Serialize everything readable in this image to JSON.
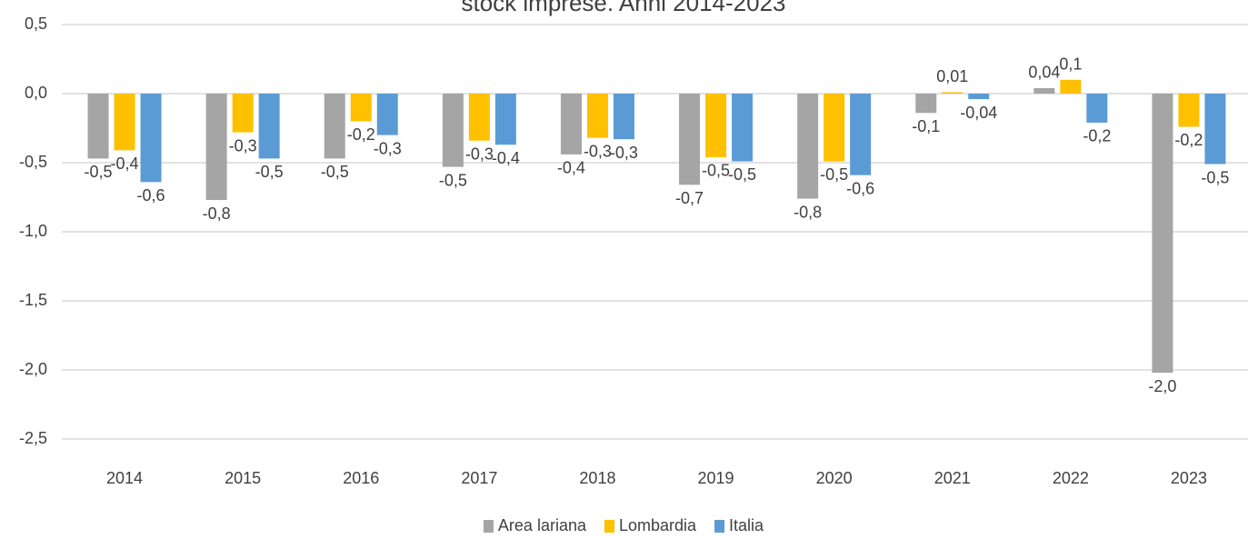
{
  "chart_data": {
    "type": "bar",
    "title": "stock imprese. Anni 2014-2023",
    "categories": [
      "2014",
      "2015",
      "2016",
      "2017",
      "2018",
      "2019",
      "2020",
      "2021",
      "2022",
      "2023"
    ],
    "series": [
      {
        "name": "Area lariana",
        "color": "#a5a5a5",
        "values": [
          -0.47,
          -0.77,
          -0.47,
          -0.53,
          -0.44,
          -0.66,
          -0.76,
          -0.14,
          0.04,
          -2.02
        ],
        "value_labels": [
          "-0,5",
          "-0,8",
          "-0,5",
          "-0,5",
          "-0,4",
          "-0,7",
          "-0,8",
          "-0,1",
          "0,04",
          "-2,0"
        ]
      },
      {
        "name": "Lombardia",
        "color": "#ffc000",
        "values": [
          -0.41,
          -0.28,
          -0.2,
          -0.34,
          -0.32,
          -0.46,
          -0.49,
          0.01,
          0.1,
          -0.24
        ],
        "value_labels": [
          "-0,4",
          "-0,3",
          "-0,2",
          "-0,3",
          "-0,3",
          "-0,5",
          "-0,5",
          "0,01",
          "0,1",
          "-0,2"
        ]
      },
      {
        "name": "Italia",
        "color": "#5b9bd5",
        "values": [
          -0.64,
          -0.47,
          -0.3,
          -0.37,
          -0.33,
          -0.49,
          -0.59,
          -0.04,
          -0.21,
          -0.51
        ],
        "value_labels": [
          "-0,6",
          "-0,5",
          "-0,3",
          "-0,4",
          "-0,3",
          "-0,5",
          "-0,6",
          "-0,04",
          "-0,2",
          "-0,5"
        ]
      }
    ],
    "ylim": [
      -2.5,
      0.5
    ],
    "yticks": [
      {
        "value": -2.5,
        "label": "-2,5"
      },
      {
        "value": -2,
        "label": "-2,0"
      },
      {
        "value": -1.5,
        "label": "-1,5"
      },
      {
        "value": -1,
        "label": "-1,0"
      },
      {
        "value": -0.5,
        "label": "-0,5"
      },
      {
        "value": 0,
        "label": "0,0"
      },
      {
        "value": 0.5,
        "label": "0,5"
      }
    ],
    "grid": true,
    "legend": "bottom"
  }
}
